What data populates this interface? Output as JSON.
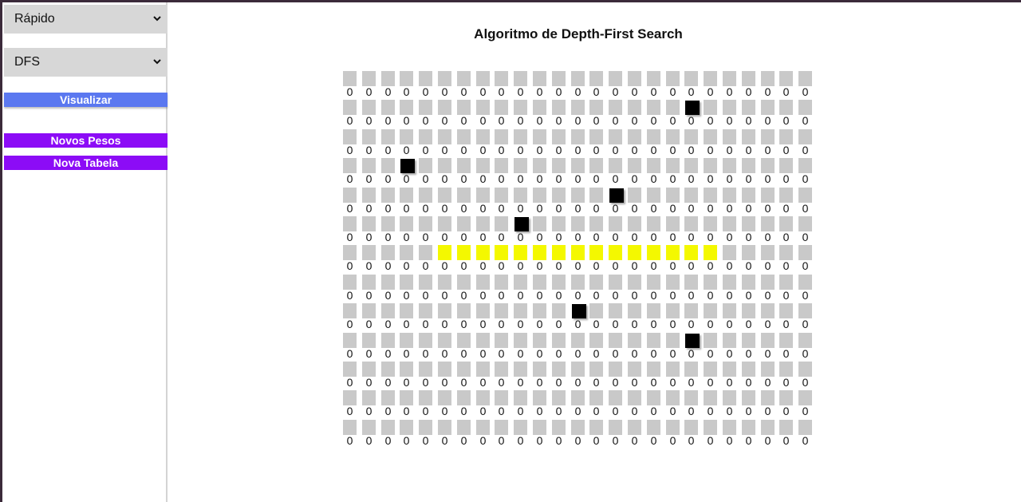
{
  "sidebar": {
    "speed_select": "Rápido",
    "algorithm_select": "DFS",
    "visualize_label": "Visualizar",
    "new_weights_label": "Novos Pesos",
    "new_table_label": "Nova Tabela"
  },
  "main": {
    "title": "Algoritmo de Depth-First Search"
  },
  "grid": {
    "rows": 13,
    "cols": 25,
    "default_weight": "0",
    "cell_color": "#c9c9c9",
    "wall_color": "#000000",
    "path_color": "#f4f800",
    "walls": [
      [
        1,
        18
      ],
      [
        3,
        3
      ],
      [
        4,
        14
      ],
      [
        5,
        9
      ],
      [
        8,
        12
      ],
      [
        9,
        18
      ]
    ],
    "path": [
      [
        6,
        5
      ],
      [
        6,
        6
      ],
      [
        6,
        7
      ],
      [
        6,
        8
      ],
      [
        6,
        9
      ],
      [
        6,
        10
      ],
      [
        6,
        11
      ],
      [
        6,
        12
      ],
      [
        6,
        13
      ],
      [
        6,
        14
      ],
      [
        6,
        15
      ],
      [
        6,
        16
      ],
      [
        6,
        17
      ],
      [
        6,
        18
      ],
      [
        6,
        19
      ]
    ]
  },
  "colors": {
    "visualize_button": "#5b78f0",
    "purple_buttons": "#8c0cf6",
    "select_background": "#d7d7d7"
  }
}
